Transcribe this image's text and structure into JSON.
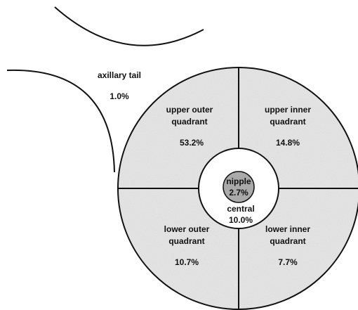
{
  "regions": [
    {
      "label_lines": [
        "axillary tail"
      ],
      "value": "1.0%"
    },
    {
      "label_lines": [
        "upper outer",
        "quadrant"
      ],
      "value": "53.2%"
    },
    {
      "label_lines": [
        "upper inner",
        "quadrant"
      ],
      "value": "14.8%"
    },
    {
      "label_lines": [
        "nipple"
      ],
      "value": "2.7%"
    },
    {
      "label_lines": [
        "central"
      ],
      "value": "10.0%"
    },
    {
      "label_lines": [
        "lower outer",
        "quadrant"
      ],
      "value": "10.7%"
    },
    {
      "label_lines": [
        "lower inner",
        "quadrant"
      ],
      "value": "7.7%"
    }
  ]
}
